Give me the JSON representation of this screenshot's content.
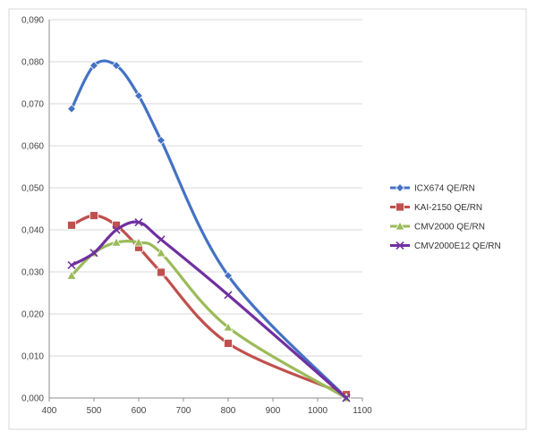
{
  "chart_data": {
    "type": "line",
    "title": "",
    "xlabel": "",
    "ylabel": "",
    "xlim": [
      400,
      1100
    ],
    "ylim": [
      0,
      0.09
    ],
    "x_ticks": [
      400,
      500,
      600,
      700,
      800,
      900,
      1000,
      1100
    ],
    "x_tick_labels": [
      "400",
      "500",
      "600",
      "700",
      "800",
      "900",
      "1000",
      "1100"
    ],
    "y_ticks": [
      0,
      0.01,
      0.02,
      0.03,
      0.04,
      0.05,
      0.06,
      0.07,
      0.08,
      0.09
    ],
    "y_tick_labels": [
      "0,000",
      "0,010",
      "0,020",
      "0,030",
      "0,040",
      "0,050",
      "0,060",
      "0,070",
      "0,080",
      "0,090"
    ],
    "grid": "horizontal",
    "legend_position": "right",
    "series": [
      {
        "name": "ICX674 QE/RN",
        "color": "#4472c4",
        "marker": "diamond",
        "x": [
          450,
          500,
          550,
          600,
          650,
          800,
          1064
        ],
        "y": [
          0.0688,
          0.0791,
          0.0791,
          0.0719,
          0.0613,
          0.0291,
          0.0
        ]
      },
      {
        "name": "KAI-2150 QE/RN",
        "color": "#c0504d",
        "marker": "square",
        "x": [
          450,
          500,
          550,
          600,
          650,
          800,
          1064
        ],
        "y": [
          0.0411,
          0.0434,
          0.0411,
          0.0358,
          0.0299,
          0.013,
          0.0008
        ]
      },
      {
        "name": "CMV2000 QE/RN",
        "color": "#9bbb59",
        "marker": "triangle",
        "x": [
          450,
          500,
          550,
          600,
          650,
          800,
          1064
        ],
        "y": [
          0.0291,
          0.0345,
          0.037,
          0.037,
          0.0345,
          0.0168,
          0.0
        ]
      },
      {
        "name": "CMV2000E12 QE/RN",
        "color": "#7030a0",
        "marker": "x",
        "x": [
          450,
          500,
          550,
          600,
          650,
          800,
          1064
        ],
        "y": [
          0.0316,
          0.0345,
          0.04,
          0.0418,
          0.0377,
          0.0245,
          0.0
        ]
      }
    ]
  }
}
